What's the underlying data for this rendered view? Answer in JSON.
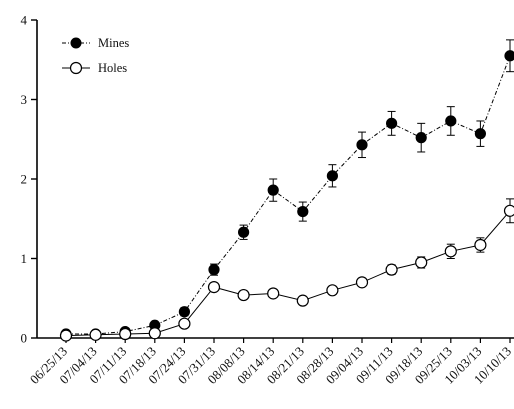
{
  "chart_data": {
    "type": "line",
    "categories": [
      "06/25/13",
      "07/04/13",
      "07/11/13",
      "07/18/13",
      "07/24/13",
      "07/31/13",
      "08/08/13",
      "08/14/13",
      "08/21/13",
      "08/28/13",
      "09/04/13",
      "09/11/13",
      "09/18/13",
      "09/25/13",
      "10/03/13",
      "10/10/13"
    ],
    "ylim": [
      0,
      4
    ],
    "yticks": [
      0,
      1,
      2,
      3,
      4
    ],
    "grid": false,
    "legend_position": "top-left",
    "series": [
      {
        "name": "Mines",
        "marker": "filled-circle",
        "line_style": "dash-dot",
        "color": "#000000",
        "values": [
          0.05,
          0.05,
          0.08,
          0.16,
          0.33,
          0.86,
          1.33,
          1.86,
          1.59,
          2.04,
          2.43,
          2.7,
          2.52,
          2.73,
          2.57,
          3.55
        ],
        "errors": [
          0.02,
          0.02,
          0.03,
          0.04,
          0.05,
          0.07,
          0.09,
          0.14,
          0.12,
          0.14,
          0.16,
          0.15,
          0.18,
          0.18,
          0.16,
          0.2
        ]
      },
      {
        "name": "Holes",
        "marker": "open-circle",
        "line_style": "solid",
        "color": "#000000",
        "values": [
          0.03,
          0.04,
          0.05,
          0.06,
          0.18,
          0.64,
          0.54,
          0.56,
          0.47,
          0.6,
          0.7,
          0.86,
          0.95,
          1.09,
          1.17,
          1.6
        ],
        "errors": [
          0.01,
          0.01,
          0.01,
          0.02,
          0.03,
          0.04,
          0.05,
          0.04,
          0.04,
          0.04,
          0.05,
          0.06,
          0.07,
          0.09,
          0.09,
          0.15
        ]
      }
    ]
  }
}
